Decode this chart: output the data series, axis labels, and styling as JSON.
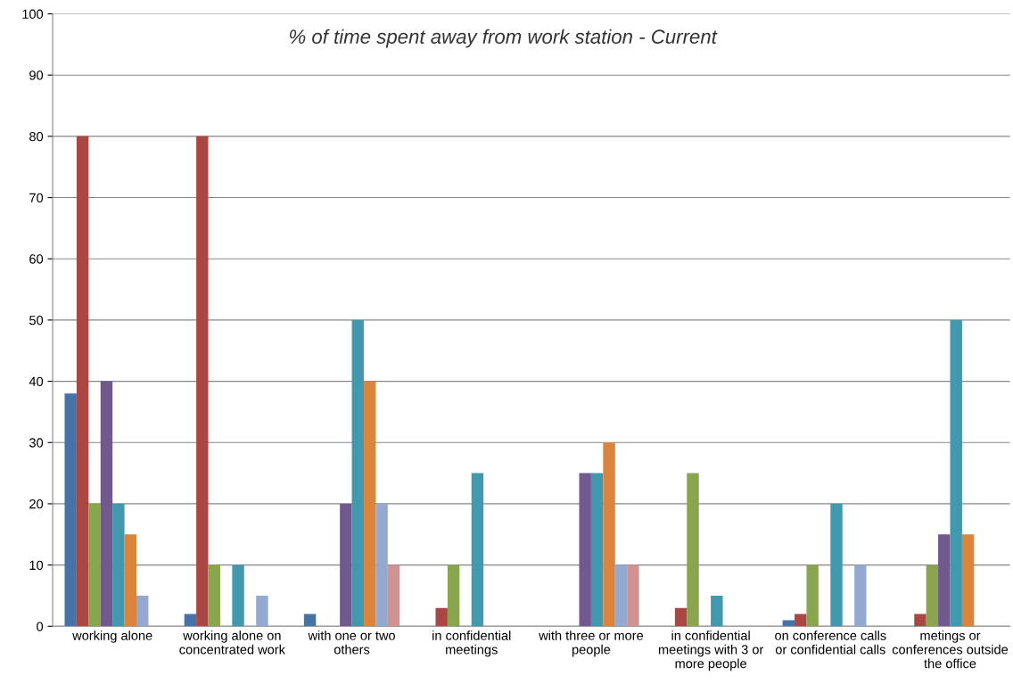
{
  "chart_data": {
    "type": "bar",
    "title": "% of time spent away from work station - Current",
    "categories": [
      "working alone",
      "working alone on concentrated work",
      "with one or two others",
      "in confidential meetings",
      "with three or more people",
      "in confidential meetings with 3 or more people",
      "on conference calls or confidential calls",
      "metings or conferences outside the office"
    ],
    "series": [
      {
        "color": "#4572a7",
        "values": [
          38,
          2,
          2,
          0,
          0,
          0,
          1,
          0
        ]
      },
      {
        "color": "#aa4643",
        "values": [
          80,
          80,
          0,
          3,
          0,
          3,
          2,
          2
        ]
      },
      {
        "color": "#89a54e",
        "values": [
          20,
          10,
          0,
          10,
          0,
          25,
          10,
          10
        ]
      },
      {
        "color": "#71588f",
        "values": [
          40,
          0,
          20,
          0,
          25,
          0,
          0,
          15
        ]
      },
      {
        "color": "#4198af",
        "values": [
          20,
          10,
          50,
          25,
          25,
          5,
          20,
          50
        ]
      },
      {
        "color": "#db843d",
        "values": [
          15,
          0,
          40,
          0,
          30,
          0,
          0,
          15
        ]
      },
      {
        "color": "#93a9cf",
        "values": [
          5,
          5,
          20,
          0,
          10,
          0,
          10,
          0
        ]
      },
      {
        "color": "#d19392",
        "values": [
          0,
          0,
          10,
          0,
          10,
          0,
          0,
          0
        ]
      }
    ],
    "ylim": [
      0,
      100
    ],
    "yticks": [
      0,
      10,
      20,
      30,
      40,
      50,
      60,
      70,
      80,
      90,
      100
    ],
    "grid": "y",
    "legend": false
  }
}
